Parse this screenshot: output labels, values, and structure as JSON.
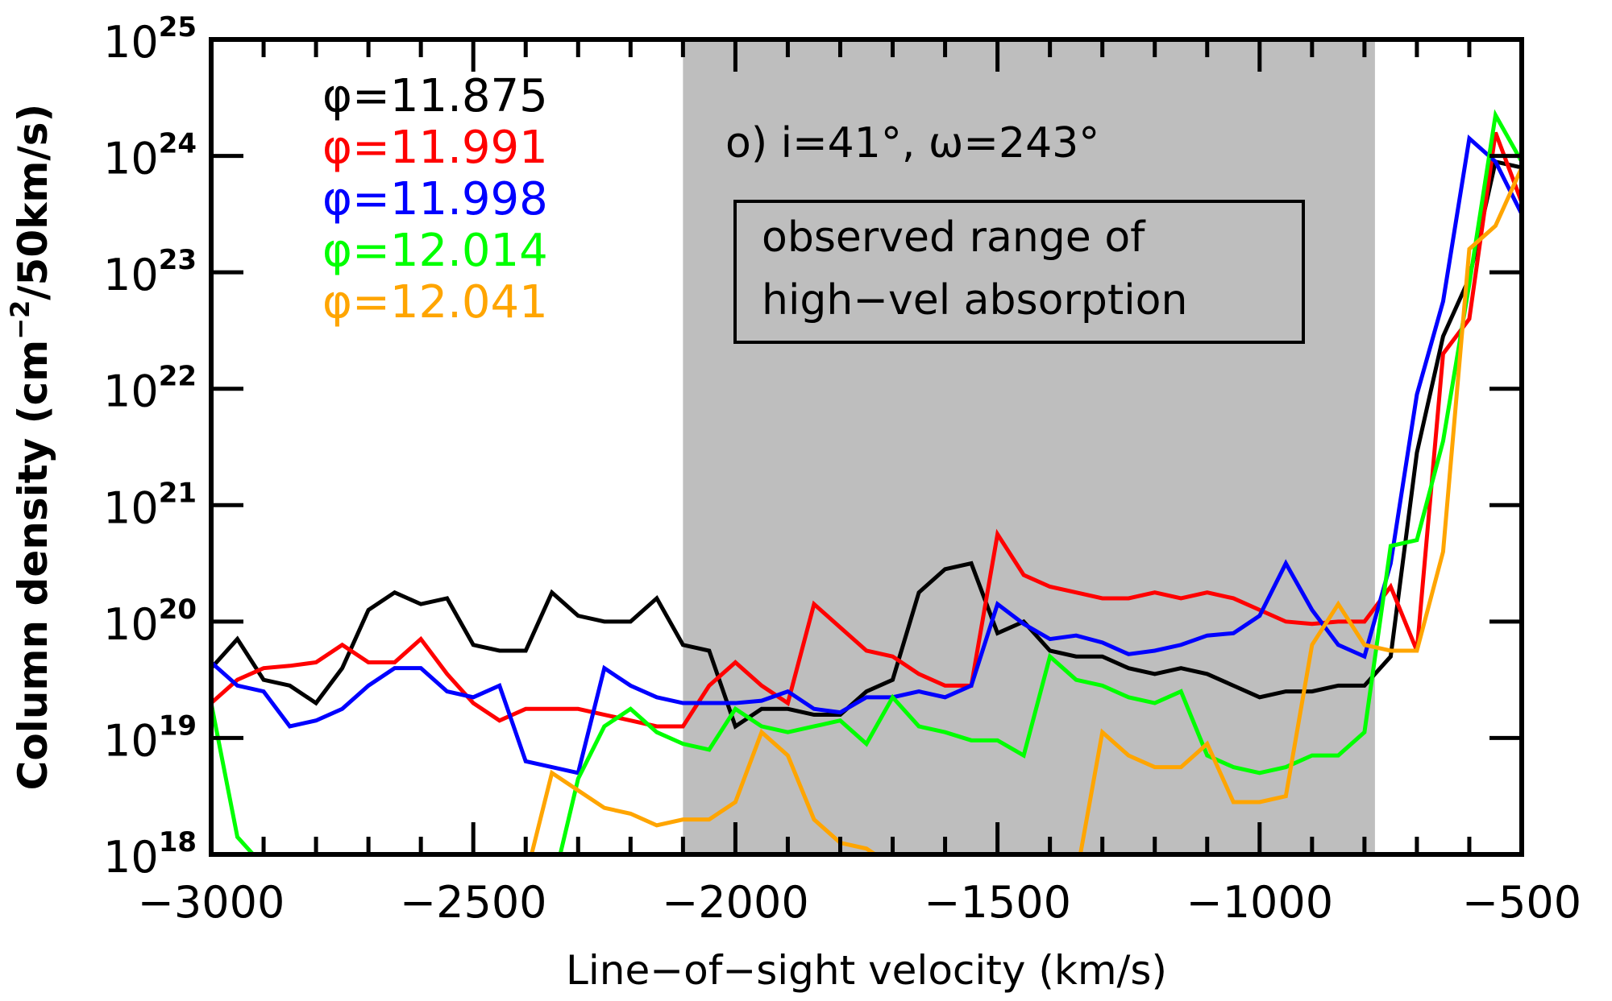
{
  "chart_data": {
    "type": "line",
    "title": "",
    "xlabel": "Line-of-sight velocity (km/s)",
    "ylabel": "Column density (cm^-2/50km/s)",
    "xlim": [
      -3000,
      -500
    ],
    "ylim": [
      1e+18,
      1e+25
    ],
    "yscale": "log",
    "grid": false,
    "x_ticks": [
      -3000,
      -2500,
      -2000,
      -1500,
      -1000,
      -500
    ],
    "x_tick_labels": [
      "−3000",
      "−2500",
      "−2000",
      "−1500",
      "−1000",
      "−500"
    ],
    "y_ticks_exponents": [
      18,
      19,
      20,
      21,
      22,
      23,
      24,
      25
    ],
    "legend_position": "upper-left",
    "annotations": [
      {
        "text": "o) i=41°, ω=243°",
        "position": "top-center"
      },
      {
        "text": "observed range of high-vel absorption",
        "boxed": true
      }
    ],
    "shaded_region": {
      "x0": -2100,
      "x1": -780,
      "color": "#bebebe",
      "label": "observed range of high-vel absorption"
    },
    "x": [
      -3000,
      -2950,
      -2900,
      -2850,
      -2800,
      -2750,
      -2700,
      -2650,
      -2600,
      -2550,
      -2500,
      -2450,
      -2400,
      -2350,
      -2300,
      -2250,
      -2200,
      -2150,
      -2100,
      -2050,
      -2000,
      -1950,
      -1900,
      -1850,
      -1800,
      -1750,
      -1700,
      -1650,
      -1600,
      -1550,
      -1500,
      -1450,
      -1400,
      -1350,
      -1300,
      -1250,
      -1200,
      -1150,
      -1100,
      -1050,
      -1000,
      -950,
      -900,
      -850,
      -800,
      -750,
      -700,
      -650,
      -600,
      -550,
      -500
    ],
    "series": [
      {
        "name": "φ=11.875",
        "color": "#000000",
        "log10_values": [
          19.6,
          19.85,
          19.5,
          19.45,
          19.3,
          19.6,
          20.1,
          20.25,
          20.15,
          20.2,
          19.8,
          19.75,
          19.75,
          20.25,
          20.05,
          20.0,
          20.0,
          20.2,
          19.8,
          19.75,
          19.1,
          19.25,
          19.25,
          19.2,
          19.2,
          19.4,
          19.5,
          20.25,
          20.45,
          20.5,
          19.9,
          20.0,
          19.75,
          19.7,
          19.7,
          19.6,
          19.55,
          19.6,
          19.55,
          19.45,
          19.35,
          19.4,
          19.4,
          19.45,
          19.45,
          19.7,
          21.45,
          22.45,
          22.95,
          23.95,
          23.9
        ]
      },
      {
        "name": "φ=11.991",
        "color": "#ff0000",
        "log10_values": [
          19.3,
          19.5,
          19.6,
          19.62,
          19.65,
          19.8,
          19.65,
          19.65,
          19.85,
          19.55,
          19.3,
          19.15,
          19.25,
          19.25,
          19.25,
          19.2,
          19.15,
          19.1,
          19.1,
          19.45,
          19.65,
          19.45,
          19.3,
          20.15,
          19.95,
          19.75,
          19.7,
          19.55,
          19.45,
          19.45,
          20.75,
          20.4,
          20.3,
          20.25,
          20.2,
          20.2,
          20.25,
          20.2,
          20.25,
          20.2,
          20.1,
          20.0,
          19.98,
          20.0,
          20.0,
          20.3,
          19.75,
          22.3,
          22.6,
          24.2,
          23.6
        ]
      },
      {
        "name": "φ=11.998",
        "color": "#0000ff",
        "log10_values": [
          19.65,
          19.45,
          19.4,
          19.1,
          19.15,
          19.25,
          19.45,
          19.6,
          19.6,
          19.4,
          19.35,
          19.45,
          18.8,
          18.75,
          18.7,
          19.6,
          19.45,
          19.35,
          19.3,
          19.3,
          19.3,
          19.32,
          19.4,
          19.25,
          19.22,
          19.35,
          19.35,
          19.4,
          19.35,
          19.45,
          20.15,
          19.98,
          19.85,
          19.88,
          19.82,
          19.72,
          19.75,
          19.8,
          19.88,
          19.9,
          20.05,
          20.5,
          20.1,
          19.8,
          19.7,
          20.5,
          21.95,
          22.75,
          24.15,
          23.95,
          23.5
        ]
      },
      {
        "name": "φ=12.014",
        "color": "#00ff00",
        "log10_values": [
          19.3,
          18.15,
          17.9,
          17.8,
          17.8,
          17.9,
          null,
          null,
          null,
          null,
          null,
          null,
          null,
          17.7,
          18.65,
          19.1,
          19.25,
          19.05,
          18.95,
          18.9,
          19.25,
          19.1,
          19.05,
          19.1,
          19.15,
          18.95,
          19.35,
          19.1,
          19.05,
          18.98,
          18.98,
          18.85,
          19.7,
          19.5,
          19.45,
          19.35,
          19.3,
          19.4,
          18.85,
          18.75,
          18.7,
          18.75,
          18.85,
          18.85,
          19.05,
          20.65,
          20.7,
          21.55,
          22.9,
          24.35,
          23.95
        ]
      },
      {
        "name": "φ=12.041",
        "color": "#ffa500",
        "log10_values": [
          null,
          null,
          null,
          null,
          null,
          null,
          null,
          null,
          null,
          null,
          null,
          null,
          17.8,
          18.7,
          18.55,
          18.4,
          18.35,
          18.25,
          18.3,
          18.3,
          18.45,
          19.05,
          18.85,
          18.3,
          18.1,
          18.05,
          17.9,
          null,
          17.9,
          null,
          null,
          null,
          null,
          17.8,
          19.05,
          18.85,
          18.75,
          18.75,
          18.95,
          18.45,
          18.45,
          18.5,
          19.8,
          20.15,
          19.8,
          19.75,
          19.75,
          20.6,
          23.2,
          23.4,
          23.9
        ]
      }
    ]
  },
  "legend": {
    "items": [
      {
        "label": "φ=11.875",
        "color": "#000000"
      },
      {
        "label": "φ=11.991",
        "color": "#ff0000"
      },
      {
        "label": "φ=11.998",
        "color": "#0000ff"
      },
      {
        "label": "φ=12.014",
        "color": "#00ff00"
      },
      {
        "label": "φ=12.041",
        "color": "#ffa500"
      }
    ]
  },
  "annotation": {
    "title": "o) i=41°, ω=243°",
    "box_line1": "observed range of",
    "box_line2": "high−vel absorption"
  },
  "axes": {
    "xlabel": "Line−of−sight velocity (km/s)",
    "ylabel_main": "Column density (cm",
    "ylabel_sup": "−2",
    "ylabel_tail": "/50km/s)",
    "x_tick_labels": [
      "−3000",
      "−2500",
      "−2000",
      "−1500",
      "−1000",
      "−500"
    ],
    "y_tick_base": "10",
    "y_tick_exponents": [
      "18",
      "19",
      "20",
      "21",
      "22",
      "23",
      "24",
      "25"
    ]
  }
}
